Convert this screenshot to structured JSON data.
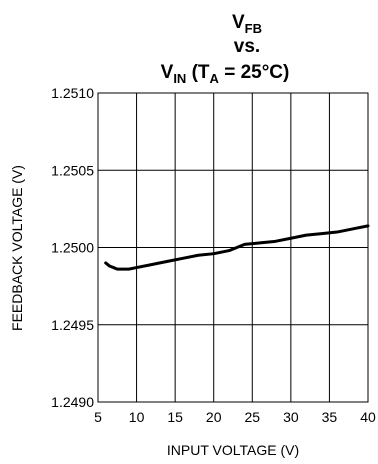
{
  "chart_data": {
    "type": "line",
    "title": {
      "line1": {
        "main": "V",
        "sub": "FB"
      },
      "line2": "vs.",
      "line3": {
        "main": "V",
        "sub": "IN",
        "paren_open": " (T",
        "paren_sub": "A",
        "rest": " = 25°C)"
      }
    },
    "xlabel": "INPUT VOLTAGE (V)",
    "ylabel": "FEEDBACK VOLTAGE (V)",
    "xlim": [
      5,
      40
    ],
    "ylim": [
      1.249,
      1.251
    ],
    "x_ticks": [
      5,
      10,
      15,
      20,
      25,
      30,
      35,
      40
    ],
    "x_tick_labels": [
      "5",
      "10",
      "15",
      "20",
      "25",
      "30",
      "35",
      "40"
    ],
    "y_ticks": [
      1.249,
      1.2495,
      1.25,
      1.2505,
      1.251
    ],
    "y_tick_labels": [
      "1.2490",
      "1.2495",
      "1.2500",
      "1.2505",
      "1.2510"
    ],
    "grid": true,
    "series": [
      {
        "color": "#000000",
        "x": [
          6,
          6.5,
          7,
          7.5,
          8,
          8.5,
          9,
          10,
          12,
          14,
          16,
          18,
          20,
          22,
          24,
          26,
          28,
          30,
          32,
          34,
          36,
          38,
          40
        ],
        "y": [
          1.2499,
          1.24988,
          1.24987,
          1.24986,
          1.24986,
          1.24986,
          1.24986,
          1.24987,
          1.24989,
          1.24991,
          1.24993,
          1.24995,
          1.24996,
          1.24998,
          1.25002,
          1.25003,
          1.25004,
          1.25006,
          1.25008,
          1.25009,
          1.2501,
          1.25012,
          1.25014
        ]
      }
    ]
  }
}
